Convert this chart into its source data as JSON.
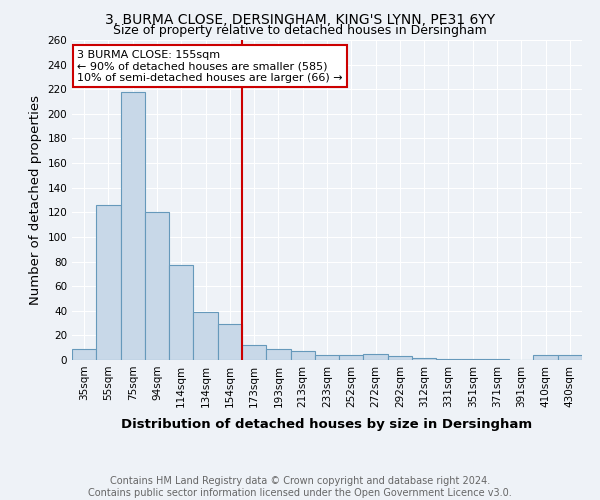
{
  "title": "3, BURMA CLOSE, DERSINGHAM, KING'S LYNN, PE31 6YY",
  "subtitle": "Size of property relative to detached houses in Dersingham",
  "xlabel": "Distribution of detached houses by size in Dersingham",
  "ylabel": "Number of detached properties",
  "categories": [
    "35sqm",
    "55sqm",
    "75sqm",
    "94sqm",
    "114sqm",
    "134sqm",
    "154sqm",
    "173sqm",
    "193sqm",
    "213sqm",
    "233sqm",
    "252sqm",
    "272sqm",
    "292sqm",
    "312sqm",
    "331sqm",
    "351sqm",
    "371sqm",
    "391sqm",
    "410sqm",
    "430sqm"
  ],
  "values": [
    9,
    126,
    218,
    120,
    77,
    39,
    29,
    12,
    9,
    7,
    4,
    4,
    5,
    3,
    2,
    1,
    1,
    1,
    0,
    4,
    4
  ],
  "bar_color": "#c8d8e8",
  "bar_edge_color": "#6699bb",
  "property_line_x": 6.5,
  "annotation_text_line1": "3 BURMA CLOSE: 155sqm",
  "annotation_text_line2": "← 90% of detached houses are smaller (585)",
  "annotation_text_line3": "10% of semi-detached houses are larger (66) →",
  "annotation_box_color": "#ffffff",
  "annotation_box_edge_color": "#cc0000",
  "line_color": "#cc0000",
  "footer_line1": "Contains HM Land Registry data © Crown copyright and database right 2024.",
  "footer_line2": "Contains public sector information licensed under the Open Government Licence v3.0.",
  "ylim": [
    0,
    260
  ],
  "yticks": [
    0,
    20,
    40,
    60,
    80,
    100,
    120,
    140,
    160,
    180,
    200,
    220,
    240,
    260
  ],
  "background_color": "#eef2f7",
  "grid_color": "#ffffff",
  "title_fontsize": 10,
  "subtitle_fontsize": 9,
  "axis_label_fontsize": 9.5,
  "tick_fontsize": 7.5,
  "footer_fontsize": 7
}
